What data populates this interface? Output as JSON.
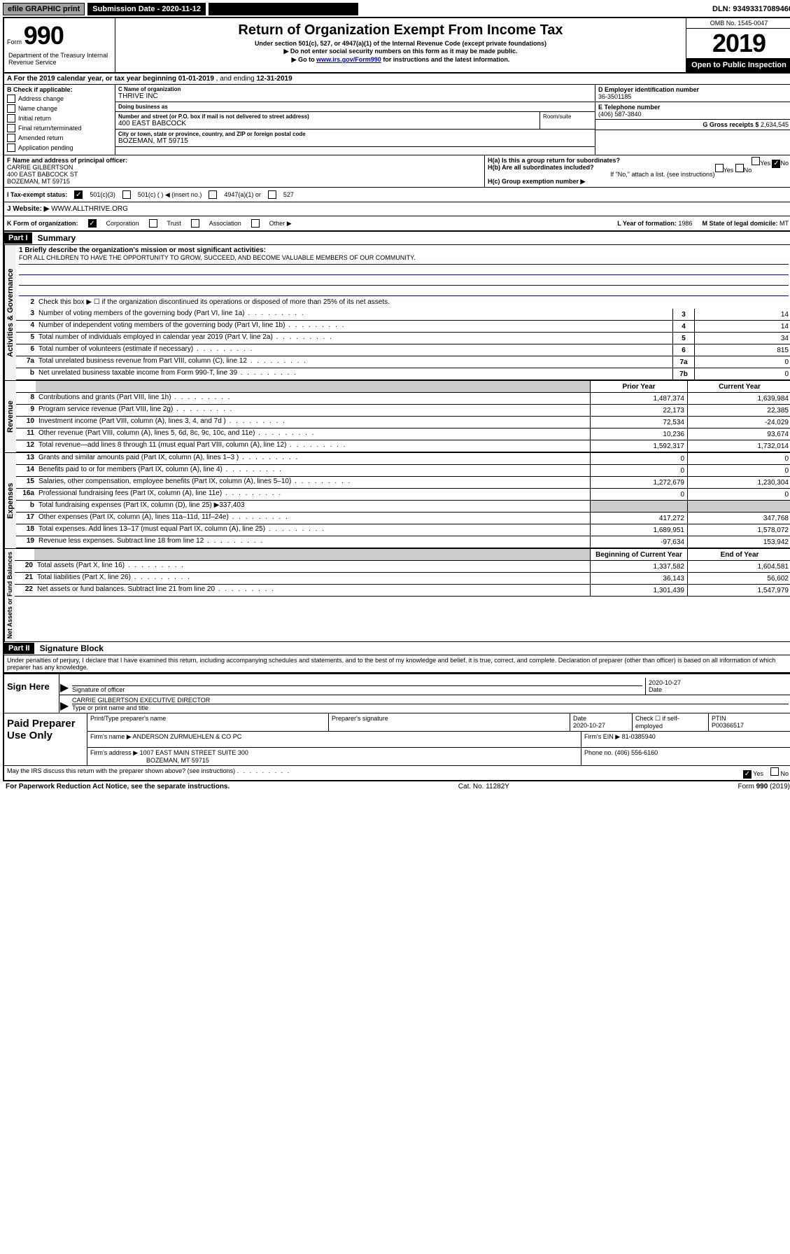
{
  "top": {
    "efile": "efile GRAPHIC print",
    "submission_label": "Submission Date - 2020-11-12",
    "dln": "DLN: 93493317089460"
  },
  "header": {
    "form_small": "Form",
    "form_num": "990",
    "title": "Return of Organization Exempt From Income Tax",
    "sub1": "Under section 501(c), 527, or 4947(a)(1) of the Internal Revenue Code (except private foundations)",
    "sub2": "▶ Do not enter social security numbers on this form as it may be made public.",
    "sub3_prefix": "▶ Go to ",
    "sub3_link": "www.irs.gov/Form990",
    "sub3_suffix": " for instructions and the latest information.",
    "omb": "OMB No. 1545-0047",
    "year": "2019",
    "open": "Open to Public Inspection",
    "dept": "Department of the Treasury Internal Revenue Service"
  },
  "row_a": {
    "text_prefix": "A For the 2019 calendar year, or tax year beginning ",
    "begin": "01-01-2019",
    "mid": " , and ending ",
    "end": "12-31-2019"
  },
  "section_b": {
    "label": "B Check if applicable:",
    "opts": [
      "Address change",
      "Name change",
      "Initial return",
      "Final return/terminated",
      "Amended return",
      "Application pending"
    ]
  },
  "section_c": {
    "name_label": "C Name of organization",
    "name": "THRIVE INC",
    "dba_label": "Doing business as",
    "dba": "",
    "addr_label": "Number and street (or P.O. box if mail is not delivered to street address)",
    "room_label": "Room/suite",
    "addr": "400 EAST BABCOCK",
    "city_label": "City or town, state or province, country, and ZIP or foreign postal code",
    "city": "BOZEMAN, MT  59715"
  },
  "section_d": {
    "label": "D Employer identification number",
    "val": "36-3501185"
  },
  "section_e": {
    "label": "E Telephone number",
    "val": "(406) 587-3840"
  },
  "section_g": {
    "label": "G Gross receipts $",
    "val": "2,634,545"
  },
  "section_f": {
    "label": "F Name and address of principal officer:",
    "name": "CARRIE GILBERTSON",
    "addr1": "400 EAST BABCOCK ST",
    "addr2": "BOZEMAN, MT  59715"
  },
  "section_h": {
    "a": "H(a)  Is this a group return for subordinates?",
    "a_yes": "Yes",
    "a_no": "No",
    "b": "H(b)  Are all subordinates included?",
    "b_yes": "Yes",
    "b_no": "No",
    "b_note": "If \"No,\" attach a list. (see instructions)",
    "c": "H(c)  Group exemption number ▶"
  },
  "section_i": {
    "label": "I  Tax-exempt status:",
    "o1": "501(c)(3)",
    "o2": "501(c) (    ) ◀ (insert no.)",
    "o3": "4947(a)(1) or",
    "o4": "527"
  },
  "section_j": {
    "label": "J  Website: ▶",
    "val": "WWW.ALLTHRIVE.ORG"
  },
  "section_k": {
    "label": "K Form of organization:",
    "opts": [
      "Corporation",
      "Trust",
      "Association",
      "Other ▶"
    ]
  },
  "section_l": {
    "label": "L Year of formation:",
    "val": "1986"
  },
  "section_m": {
    "label": "M State of legal domicile:",
    "val": "MT"
  },
  "part1": {
    "header": "Part I",
    "title": "Summary",
    "line1_label": "1  Briefly describe the organization's mission or most significant activities:",
    "mission": "FOR ALL CHILDREN TO HAVE THE OPPORTUNITY TO GROW, SUCCEED, AND BECOME VALUABLE MEMBERS OF OUR COMMUNITY.",
    "line2": "Check this box ▶ ☐  if the organization discontinued its operations or disposed of more than 25% of its net assets.",
    "gov_label": "Activities & Governance",
    "rev_label": "Revenue",
    "exp_label": "Expenses",
    "net_label": "Net Assets or Fund Balances",
    "prior_header": "Prior Year",
    "current_header": "Current Year",
    "begin_header": "Beginning of Current Year",
    "end_header": "End of Year",
    "rows_gov": [
      {
        "n": "3",
        "d": "Number of voting members of the governing body (Part VI, line 1a)",
        "box": "3",
        "v": "14"
      },
      {
        "n": "4",
        "d": "Number of independent voting members of the governing body (Part VI, line 1b)",
        "box": "4",
        "v": "14"
      },
      {
        "n": "5",
        "d": "Total number of individuals employed in calendar year 2019 (Part V, line 2a)",
        "box": "5",
        "v": "34"
      },
      {
        "n": "6",
        "d": "Total number of volunteers (estimate if necessary)",
        "box": "6",
        "v": "815"
      },
      {
        "n": "7a",
        "d": "Total unrelated business revenue from Part VIII, column (C), line 12",
        "box": "7a",
        "v": "0"
      },
      {
        "n": "b",
        "d": "Net unrelated business taxable income from Form 990-T, line 39",
        "box": "7b",
        "v": "0"
      }
    ],
    "rows_rev": [
      {
        "n": "8",
        "d": "Contributions and grants (Part VIII, line 1h)",
        "p": "1,487,374",
        "c": "1,639,984"
      },
      {
        "n": "9",
        "d": "Program service revenue (Part VIII, line 2g)",
        "p": "22,173",
        "c": "22,385"
      },
      {
        "n": "10",
        "d": "Investment income (Part VIII, column (A), lines 3, 4, and 7d )",
        "p": "72,534",
        "c": "-24,029"
      },
      {
        "n": "11",
        "d": "Other revenue (Part VIII, column (A), lines 5, 6d, 8c, 9c, 10c, and 11e)",
        "p": "10,236",
        "c": "93,674"
      },
      {
        "n": "12",
        "d": "Total revenue—add lines 8 through 11 (must equal Part VIII, column (A), line 12)",
        "p": "1,592,317",
        "c": "1,732,014"
      }
    ],
    "rows_exp": [
      {
        "n": "13",
        "d": "Grants and similar amounts paid (Part IX, column (A), lines 1–3 )",
        "p": "0",
        "c": "0"
      },
      {
        "n": "14",
        "d": "Benefits paid to or for members (Part IX, column (A), line 4)",
        "p": "0",
        "c": "0"
      },
      {
        "n": "15",
        "d": "Salaries, other compensation, employee benefits (Part IX, column (A), lines 5–10)",
        "p": "1,272,679",
        "c": "1,230,304"
      },
      {
        "n": "16a",
        "d": "Professional fundraising fees (Part IX, column (A), line 11e)",
        "p": "0",
        "c": "0"
      }
    ],
    "row_16b": {
      "n": "b",
      "d": "Total fundraising expenses (Part IX, column (D), line 25) ▶337,403"
    },
    "rows_exp2": [
      {
        "n": "17",
        "d": "Other expenses (Part IX, column (A), lines 11a–11d, 11f–24e)",
        "p": "417,272",
        "c": "347,768"
      },
      {
        "n": "18",
        "d": "Total expenses. Add lines 13–17 (must equal Part IX, column (A), line 25)",
        "p": "1,689,951",
        "c": "1,578,072"
      },
      {
        "n": "19",
        "d": "Revenue less expenses. Subtract line 18 from line 12",
        "p": "-97,634",
        "c": "153,942"
      }
    ],
    "rows_net": [
      {
        "n": "20",
        "d": "Total assets (Part X, line 16)",
        "p": "1,337,582",
        "c": "1,604,581"
      },
      {
        "n": "21",
        "d": "Total liabilities (Part X, line 26)",
        "p": "36,143",
        "c": "56,602"
      },
      {
        "n": "22",
        "d": "Net assets or fund balances. Subtract line 21 from line 20",
        "p": "1,301,439",
        "c": "1,547,979"
      }
    ]
  },
  "part2": {
    "header": "Part II",
    "title": "Signature Block",
    "declaration": "Under penalties of perjury, I declare that I have examined this return, including accompanying schedules and statements, and to the best of my knowledge and belief, it is true, correct, and complete. Declaration of preparer (other than officer) is based on all information of which preparer has any knowledge."
  },
  "sign": {
    "label": "Sign Here",
    "sig_of_officer": "Signature of officer",
    "date": "2020-10-27",
    "date_label": "Date",
    "name": "CARRIE GILBERTSON  EXECUTIVE DIRECTOR",
    "name_label": "Type or print name and title"
  },
  "paid": {
    "label": "Paid Preparer Use Only",
    "h1": "Print/Type preparer's name",
    "h2": "Preparer's signature",
    "h3": "Date",
    "h3v": "2020-10-27",
    "h4": "Check ☐ if self-employed",
    "h5": "PTIN",
    "h5v": "P00366517",
    "firm_name_label": "Firm's name    ▶",
    "firm_name": "ANDERSON ZURMUEHLEN & CO PC",
    "firm_ein_label": "Firm's EIN ▶",
    "firm_ein": "81-0385940",
    "firm_addr_label": "Firm's address ▶",
    "firm_addr1": "1007 EAST MAIN STREET SUITE 300",
    "firm_addr2": "BOZEMAN, MT  59715",
    "phone_label": "Phone no.",
    "phone": "(406) 556-6160"
  },
  "discuss": {
    "text": "May the IRS discuss this return with the preparer shown above? (see instructions)",
    "yes": "Yes",
    "no": "No"
  },
  "footer": {
    "left": "For Paperwork Reduction Act Notice, see the separate instructions.",
    "mid": "Cat. No. 11282Y",
    "right": "Form 990 (2019)"
  }
}
